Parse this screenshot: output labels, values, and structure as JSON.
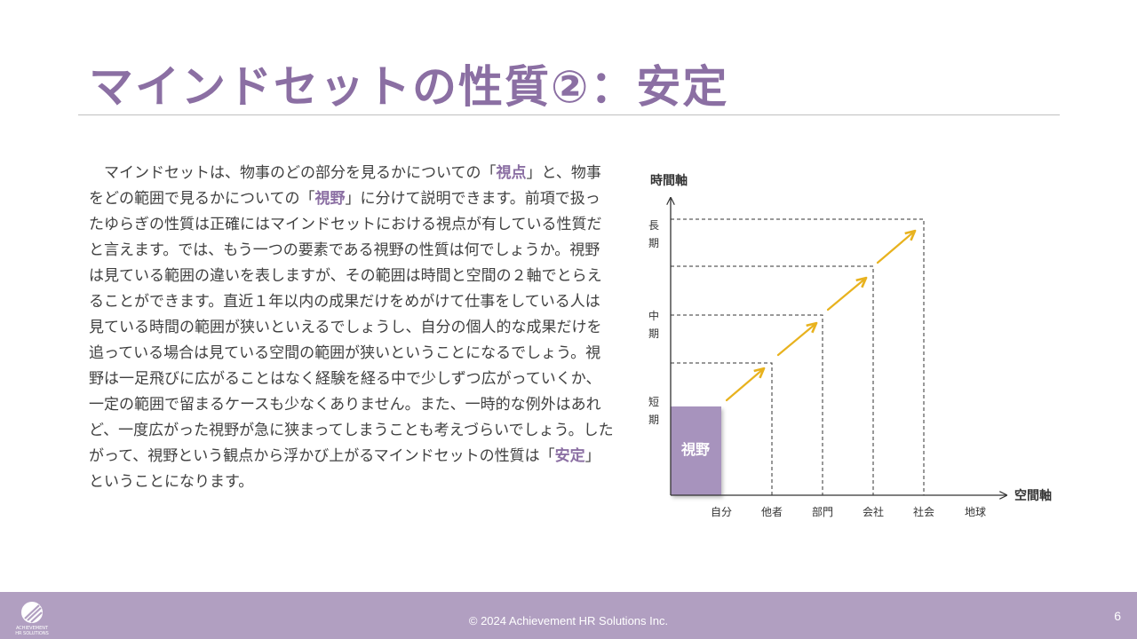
{
  "title": "マインドセットの性質②：安定",
  "body": {
    "s1": "マインドセットは、物事のどの部分を見るかについての",
    "q1_open": "「",
    "kw_viewpoint": "視点",
    "q1_close": "」",
    "s2": "と、物事をどの範囲で見るかについての",
    "q2_open": "「",
    "kw_field": "視野",
    "q2_close": "」",
    "s3": "に分けて説明できます。前項で扱ったゆらぎの性質は正確にはマインドセットにおける視点が有している性質だと言えます。では、もう一つの要素である視野の性質は何でしょうか。視野は見ている範囲の違いを表しますが、その範囲は時間と空間の２軸でとらえることができます。直近１年以内の成果だけをめがけて仕事をしている人は見ている時間の範囲が狭いといえるでしょうし、自分の個人的な成果だけを追っている場合は見ている空間の範囲が狭いということになるでしょう。視野は一足飛びに広がることはなく経験を経る中で少しずつ広がっていくか、一定の範囲で留まるケースも少なくありません。また、一時的な例外はあれど、一度広がった視野が急に狭まってしまうことも考えづらいでしょう。したがって、視野という観点から浮かび上がるマインドセットの性質は",
    "q3_open": "「",
    "kw_stable": "安定",
    "q3_close": "」",
    "s4": "ということになります。"
  },
  "diagram": {
    "y_axis_label": "時間軸",
    "x_axis_label": "空間軸",
    "y_ticks": [
      {
        "c1": "長",
        "c2": "期"
      },
      {
        "c1": "中",
        "c2": "期"
      },
      {
        "c1": "短",
        "c2": "期"
      }
    ],
    "x_ticks": [
      "自分",
      "他者",
      "部門",
      "会社",
      "社会",
      "地球"
    ],
    "field_label": "視野",
    "field_color": "#a793bd",
    "arrow_color": "#e8b21e"
  },
  "footer": {
    "copyright": "© 2024 Achievement HR Solutions Inc.",
    "page_number": "6",
    "logo_text_1": "ACHIEVEMENT",
    "logo_text_2": "HR SOLUTIONS",
    "bg_color": "#b19fc1"
  }
}
